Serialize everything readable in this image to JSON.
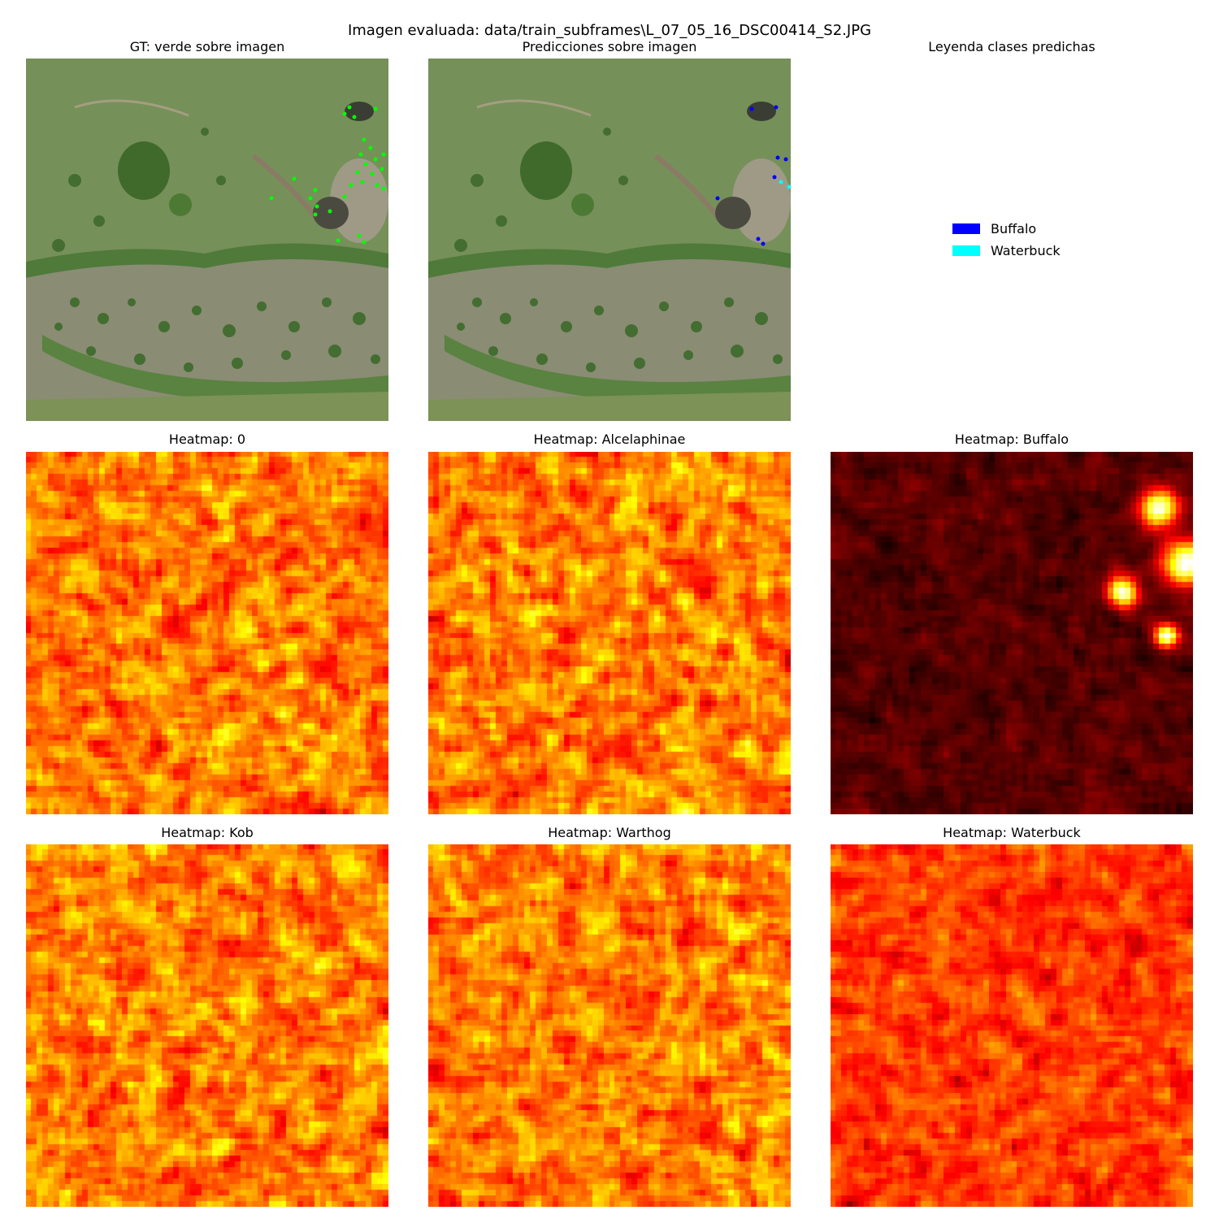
{
  "figure": {
    "suptitle": "Imagen evaluada: data/train_subframes\\L_07_05_16_DSC00414_S2.JPG"
  },
  "panels": {
    "gt": {
      "title": "GT: verde sobre imagen",
      "marker_color": "#00ff00"
    },
    "pred": {
      "title": "Predicciones sobre imagen"
    },
    "legend": {
      "title": "Leyenda clases predichas",
      "items": [
        {
          "label": "Buffalo",
          "color": "#0000ff"
        },
        {
          "label": "Waterbuck",
          "color": "#00ffff"
        }
      ]
    }
  },
  "heatmaps": [
    {
      "title": "Heatmap: 0",
      "level": "high"
    },
    {
      "title": "Heatmap: Alcelaphinae",
      "level": "high"
    },
    {
      "title": "Heatmap: Buffalo",
      "level": "low"
    },
    {
      "title": "Heatmap: Kob",
      "level": "high"
    },
    {
      "title": "Heatmap: Warthog",
      "level": "high"
    },
    {
      "title": "Heatmap: Waterbuck",
      "level": "mid"
    }
  ],
  "colormap": "hot"
}
